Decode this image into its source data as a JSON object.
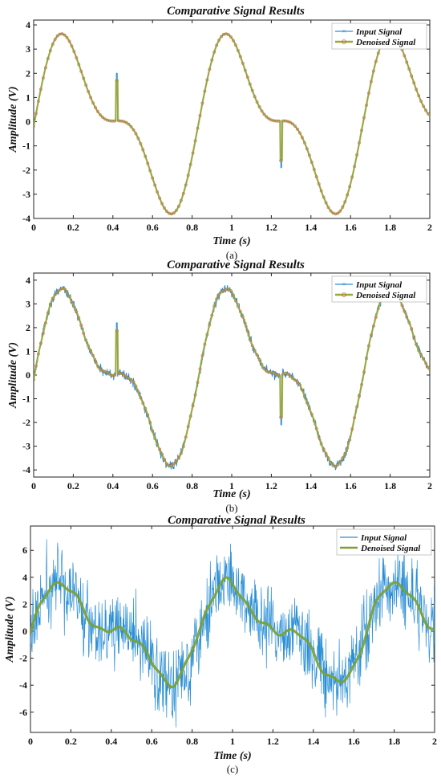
{
  "chart_data": [
    {
      "type": "line",
      "panel_label": "(a)",
      "title": "Comparative Signal Results",
      "xlabel": "Time (s)",
      "ylabel": "Amplitude (V)",
      "xlim": [
        0,
        2
      ],
      "ylim": [
        -4,
        4.2
      ],
      "xticks": [
        "0",
        "0.2",
        "0.4",
        "0.6",
        "0.8",
        "1",
        "1.2",
        "1.4",
        "1.6",
        "1.8",
        "2"
      ],
      "yticks": [
        "-4",
        "-3",
        "-2",
        "-1",
        "0",
        "1",
        "2",
        "3",
        "4"
      ],
      "legend_position": "top-right",
      "grid": false,
      "noise_level": 0,
      "spikes": [
        {
          "t": 0.42,
          "v": 2.0
        },
        {
          "t": 1.25,
          "v": -1.9
        }
      ],
      "series": [
        {
          "name": "Input Signal",
          "color": "#2b8fd6",
          "marker": "x"
        },
        {
          "name": "Denoised Signal",
          "color": "#9aa83a",
          "marker": "o"
        }
      ]
    },
    {
      "type": "line",
      "panel_label": "(b)",
      "title": "Comparative Signal Results",
      "xlabel": "Time (s)",
      "ylabel": "Amplitude (V)",
      "xlim": [
        0,
        2
      ],
      "ylim": [
        -4.3,
        4.3
      ],
      "xticks": [
        "0",
        "0.2",
        "0.4",
        "0.6",
        "0.8",
        "1",
        "1.2",
        "1.4",
        "1.6",
        "1.8",
        "2"
      ],
      "yticks": [
        "-4",
        "-3",
        "-2",
        "-1",
        "0",
        "1",
        "2",
        "3",
        "4"
      ],
      "legend_position": "top-right",
      "grid": false,
      "noise_level": 0.1,
      "spikes": [
        {
          "t": 0.42,
          "v": 2.2
        },
        {
          "t": 1.25,
          "v": -2.1
        }
      ],
      "series": [
        {
          "name": "Input Signal",
          "color": "#2b8fd6",
          "marker": "x"
        },
        {
          "name": "Denoised Signal",
          "color": "#9aa83a",
          "marker": "o"
        }
      ]
    },
    {
      "type": "line",
      "panel_label": "(c)",
      "title": "Comparative Signal Results",
      "xlabel": "Time (s)",
      "ylabel": "Amplitude (V)",
      "xlim": [
        0,
        2
      ],
      "ylim": [
        -7.5,
        7.8
      ],
      "xticks": [
        "0",
        "0.2",
        "0.4",
        "0.6",
        "0.8",
        "1",
        "1.2",
        "1.4",
        "1.6",
        "1.8",
        "2"
      ],
      "yticks": [
        "-6",
        "-4",
        "-2",
        "0",
        "2",
        "4",
        "6"
      ],
      "legend_position": "top-right",
      "grid": false,
      "noise_level": 1.4,
      "spikes": [],
      "series": [
        {
          "name": "Input Signal",
          "color": "#2b8fd6",
          "marker": "none"
        },
        {
          "name": "Denoised Signal",
          "color": "#7aa030",
          "marker": "none"
        }
      ]
    }
  ]
}
